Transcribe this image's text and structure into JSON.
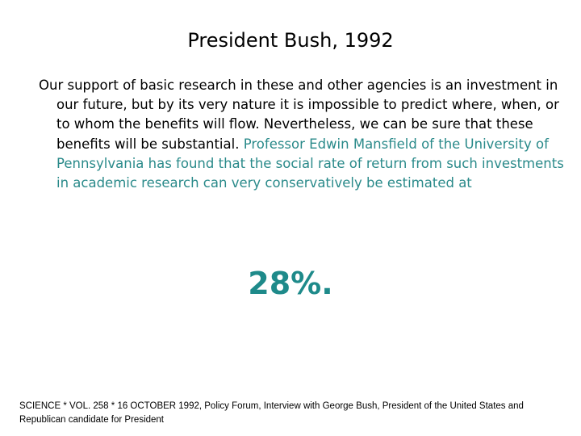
{
  "slide": {
    "title": "President Bush, 1992",
    "quote_part1": "Our support of basic research in these and other agencies is an investment in our future, but by its very nature it is impossible to predict where, when, or to whom the benefits will flow. Nevertheless, we can be sure that these benefits will be substantial. ",
    "quote_part2": "Professor Edwin Mansfield of the University of Pennsylvania has found that the social rate of return from such investments in academic research can very conservatively be estimated at",
    "statistic": "28%.",
    "citation": "SCIENCE * VOL. 258 * 16 OCTOBER 1992, Policy Forum, Interview with George Bush, President of the United States and Republican candidate for President"
  },
  "colors": {
    "text": "#000000",
    "accent": "#2a8a8a",
    "statistic": "#1e8a8a",
    "background": "#ffffff"
  }
}
